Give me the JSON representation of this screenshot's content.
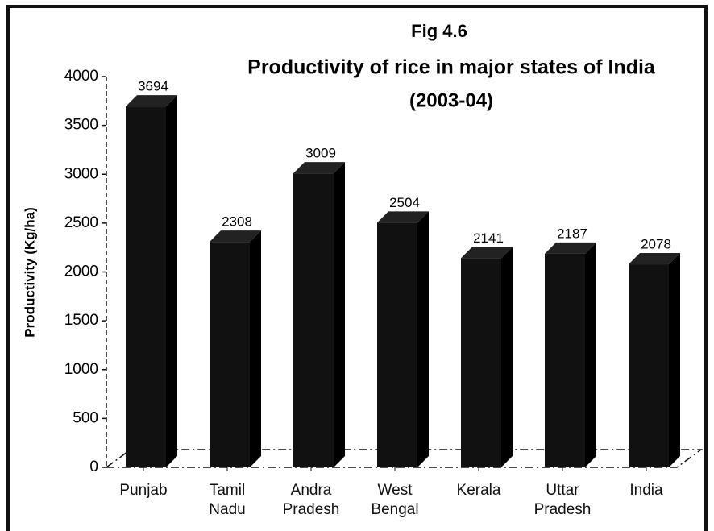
{
  "chart_data": {
    "type": "bar",
    "title": "Productivity of rice in major states of India",
    "figure_label": "Fig 4.6",
    "subtitle": "(2003-04)",
    "y_label": "Productivity (Kg/ha)",
    "categories": [
      "Punjab",
      "Tamil Nadu",
      "Andra Pradesh",
      "West Bengal",
      "Kerala",
      "Uttar Pradesh",
      "India"
    ],
    "values": [
      3694,
      2308,
      3009,
      2504,
      2141,
      2187,
      2078
    ],
    "color": "#111111",
    "ylim": [
      0,
      4000
    ],
    "yticks": [
      0,
      500,
      1000,
      1500,
      2000,
      2500,
      3000,
      3500,
      4000
    ],
    "grid": false
  }
}
